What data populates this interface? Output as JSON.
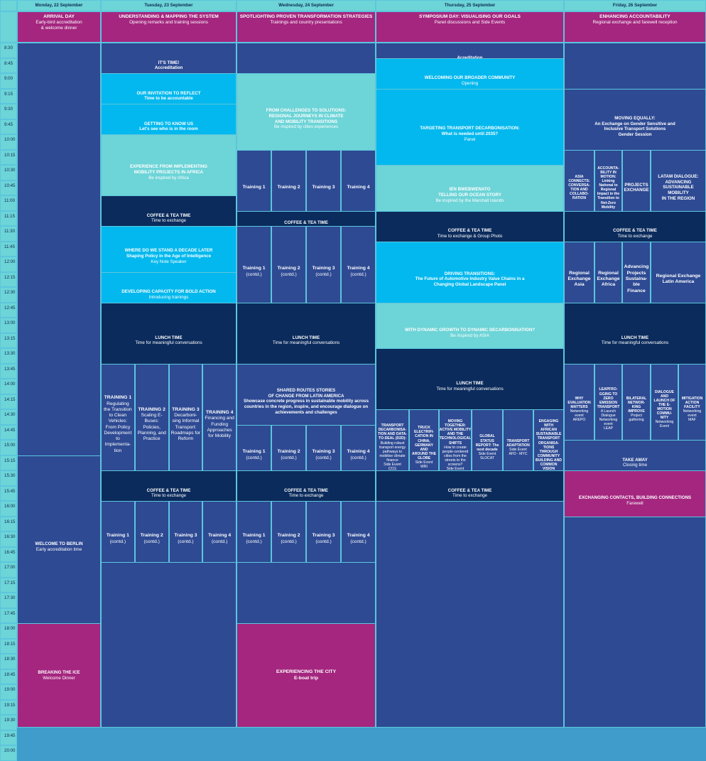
{
  "colors": {
    "border": "#5cc6dd",
    "header_bg": "#6dd4d7",
    "time_bg": "#6dd4d7",
    "magenta": "#a4267f",
    "royal": "#2e4a93",
    "navy": "#0b2b5c",
    "sky": "#02b8ee",
    "teal": "#6dd4d7",
    "dark_text": "#0d2a52",
    "light_text": "#ffffff"
  },
  "days": [
    {
      "title": "Monday, 22 September",
      "sub_title": "ARRIVAL DAY",
      "sub_text": "Early-bird accreditation\n& welcome dinner"
    },
    {
      "title": "Tuesday, 23 September",
      "sub_title": "UNDERSTANDING & MAPPING THE SYSTEM",
      "sub_text": "Opening remarks and training sessions"
    },
    {
      "title": "Wednesday, 24 September",
      "sub_title": "SPOTLIGHTING PROVEN TRANSFORMATION STRATEGIES",
      "sub_text": "Trainings and country presentations"
    },
    {
      "title": "Thursday, 25 September",
      "sub_title": "SYMPOSIUM DAY: VISUALISING OUR GOALS",
      "sub_text": "Panel discussions and Side Events"
    },
    {
      "title": "Friday, 26 September",
      "sub_title": "ENHANCING ACCOUNTABILITY",
      "sub_text": "Regional exchange and farewell reception"
    }
  ],
  "times": [
    "8:30",
    "8:45",
    "9:00",
    "9:15",
    "9:30",
    "9:45",
    "10:00",
    "10:15",
    "10:30",
    "10:45",
    "11:00",
    "11:15",
    "11:30",
    "11:45",
    "12:00",
    "12:15",
    "12:30",
    "12:45",
    "13:00",
    "13:15",
    "13:30",
    "13:45",
    "14:00",
    "14:15",
    "14:30",
    "14:45",
    "15:00",
    "15:15",
    "15:30",
    "15:45",
    "16:00",
    "16:15",
    "16:30",
    "16:45",
    "17:00",
    "17:15",
    "17:30",
    "17:45",
    "18:00",
    "18:15",
    "18:30",
    "18:45",
    "19:00",
    "19:15",
    "19:30",
    "19:45",
    "20:00"
  ],
  "events": [
    {
      "day": 0,
      "col": 0,
      "span": 1,
      "start": 0,
      "end": 27,
      "color": "royal",
      "title": "",
      "text": ""
    },
    {
      "day": 0,
      "col": 0,
      "span": 1,
      "start": 27,
      "end": 38,
      "color": "royal",
      "title": "WELCOME TO BERLIN",
      "text": "Early accreditation time"
    },
    {
      "day": 0,
      "col": 0,
      "span": 1,
      "start": 38,
      "end": 46,
      "color": "magenta",
      "title": "BREAKING THE ICE",
      "text": "Welcome Dinner"
    },
    {
      "day": 1,
      "col": 0,
      "span": 4,
      "start": 0,
      "end": 2,
      "color": "royal",
      "title": "IT'S TIME!\nAccreditation",
      "text": ""
    },
    {
      "day": 1,
      "col": 0,
      "span": 4,
      "start": 2,
      "end": 4,
      "color": "sky",
      "title": "OUR INVITATION TO REFLECT\nTime to be accountable",
      "text": ""
    },
    {
      "day": 1,
      "col": 0,
      "span": 4,
      "start": 4,
      "end": 6,
      "color": "sky",
      "title": "GETTING TO KNOW US\nLet's see who is in the room",
      "text": ""
    },
    {
      "day": 1,
      "col": 0,
      "span": 4,
      "start": 6,
      "end": 10,
      "color": "teal",
      "title": "EXPERIENCE FROM IMPLEMENTING\nMOBILITY PROJECTS IN AFRICA",
      "text": "Be inspired by Africa"
    },
    {
      "day": 1,
      "col": 0,
      "span": 4,
      "start": 10,
      "end": 12,
      "color": "navy",
      "title": "COFFEE & TEA TIME",
      "text": "Time to exchange"
    },
    {
      "day": 1,
      "col": 0,
      "span": 4,
      "start": 12,
      "end": 15,
      "color": "sky",
      "title": "WHERE DO WE STAND A DECADE LATER\nShaping Policy in the Age of Intelligence",
      "text": "Key Note Speaker"
    },
    {
      "day": 1,
      "col": 0,
      "span": 4,
      "start": 15,
      "end": 17,
      "color": "sky",
      "title": "DEVELOPING CAPACITY FOR BOLD ACTION",
      "text": "Introducing trainings"
    },
    {
      "day": 1,
      "col": 0,
      "span": 4,
      "start": 17,
      "end": 21,
      "color": "navy",
      "title": "LUNCH TIME",
      "text": "Time for meaningful conversations"
    },
    {
      "day": 1,
      "col": 0,
      "span": 1,
      "start": 21,
      "end": 28,
      "color": "royal",
      "size": "large",
      "title": "TRAINING 1",
      "text": "Regulating\nthe Transition\nto Clean\nVehicles:\nFrom Policy\nDevelopment\nto\nImplementa-\ntion"
    },
    {
      "day": 1,
      "col": 1,
      "span": 1,
      "start": 21,
      "end": 28,
      "color": "royal",
      "size": "large",
      "title": "TRAINING 2",
      "text": "Scaling E-\nBuses:\nPolicies,\nPlanning, and\nPractice"
    },
    {
      "day": 1,
      "col": 2,
      "span": 1,
      "start": 21,
      "end": 28,
      "color": "royal",
      "size": "large",
      "title": "TRAINING 3",
      "text": "Decarboni-\nsing Informal\nTransport:\nRoadmaps for\nReform"
    },
    {
      "day": 1,
      "col": 3,
      "span": 1,
      "start": 21,
      "end": 28,
      "color": "royal",
      "size": "large",
      "title": "TRAINING 4",
      "text": "Financing and\nFunding\nApproaches\nfor Mobility"
    },
    {
      "day": 1,
      "col": 0,
      "span": 4,
      "start": 28,
      "end": 30,
      "color": "navy",
      "title": "COFFEE & TEA TIME",
      "text": "Time to exchange"
    },
    {
      "day": 1,
      "col": 0,
      "span": 1,
      "start": 30,
      "end": 34,
      "color": "royal",
      "size": "large",
      "title": "Training 1",
      "text": "(contd.)"
    },
    {
      "day": 1,
      "col": 1,
      "span": 1,
      "start": 30,
      "end": 34,
      "color": "royal",
      "size": "large",
      "title": "Training 2",
      "text": "(contd.)"
    },
    {
      "day": 1,
      "col": 2,
      "span": 1,
      "start": 30,
      "end": 34,
      "color": "royal",
      "size": "large",
      "title": "Training 3",
      "text": "(contd.)"
    },
    {
      "day": 1,
      "col": 3,
      "span": 1,
      "start": 30,
      "end": 34,
      "color": "royal",
      "size": "large",
      "title": "Training 4",
      "text": "(contd.)"
    },
    {
      "day": 1,
      "col": 0,
      "span": 4,
      "start": 34,
      "end": 46,
      "color": "royal",
      "title": "",
      "text": ""
    },
    {
      "day": 2,
      "col": 0,
      "span": 4,
      "start": 0,
      "end": 2,
      "color": "royal",
      "title": "",
      "text": ""
    },
    {
      "day": 2,
      "col": 0,
      "span": 4,
      "start": 2,
      "end": 7,
      "color": "teal",
      "title": "FROM CHALLENGES TO SOLUTIONS:\nREGIONAL JOURNEYS IN CLIMATE\nAND MOBILITY TRANSITIONS",
      "text": "Be inspired by cities experiences"
    },
    {
      "day": 2,
      "col": 0,
      "span": 1,
      "start": 7,
      "end": 11,
      "color": "royal",
      "size": "large",
      "title": "Training 1",
      "text": ""
    },
    {
      "day": 2,
      "col": 1,
      "span": 1,
      "start": 7,
      "end": 11,
      "color": "royal",
      "size": "large",
      "title": "Training 2",
      "text": ""
    },
    {
      "day": 2,
      "col": 2,
      "span": 1,
      "start": 7,
      "end": 11,
      "color": "royal",
      "size": "large",
      "title": "Training 3",
      "text": ""
    },
    {
      "day": 2,
      "col": 3,
      "span": 1,
      "start": 7,
      "end": 11,
      "color": "royal",
      "size": "large",
      "title": "Training 4",
      "text": ""
    },
    {
      "day": 2,
      "col": 0,
      "span": 4,
      "start": 11,
      "end": 12,
      "color": "navy",
      "title": "COFFEE & TEA TIME",
      "text": "Time to exchange"
    },
    {
      "day": 2,
      "col": 0,
      "span": 1,
      "start": 12,
      "end": 17,
      "color": "royal",
      "size": "large",
      "title": "Training 1",
      "text": "(contd.)"
    },
    {
      "day": 2,
      "col": 1,
      "span": 1,
      "start": 12,
      "end": 17,
      "color": "royal",
      "size": "large",
      "title": "Training 2",
      "text": "(contd.)"
    },
    {
      "day": 2,
      "col": 2,
      "span": 1,
      "start": 12,
      "end": 17,
      "color": "royal",
      "size": "large",
      "title": "Training 3",
      "text": "(contd.)"
    },
    {
      "day": 2,
      "col": 3,
      "span": 1,
      "start": 12,
      "end": 17,
      "color": "royal",
      "size": "large",
      "title": "Training 4",
      "text": "(contd.)"
    },
    {
      "day": 2,
      "col": 0,
      "span": 4,
      "start": 17,
      "end": 21,
      "color": "navy",
      "title": "LUNCH TIME",
      "text": "Time for meaningful conversations"
    },
    {
      "day": 2,
      "col": 0,
      "span": 4,
      "start": 21,
      "end": 25,
      "color": "royal",
      "title": "SHARED ROUTES STORIES\nOF CHANGE FROM LATIN AMERICA\nShowcase concrete progress in sustainable mobility across\ncountries in the region, inspire, and encourage dialogue on\nachievements and challenges",
      "text": ""
    },
    {
      "day": 2,
      "col": 0,
      "span": 1,
      "start": 25,
      "end": 28,
      "color": "royal",
      "size": "large",
      "title": "Training 1",
      "text": "(contd.)"
    },
    {
      "day": 2,
      "col": 1,
      "span": 1,
      "start": 25,
      "end": 28,
      "color": "royal",
      "size": "large",
      "title": "Training 2",
      "text": "(contd.)"
    },
    {
      "day": 2,
      "col": 2,
      "span": 1,
      "start": 25,
      "end": 28,
      "color": "royal",
      "size": "large",
      "title": "Training 3",
      "text": "(contd.)"
    },
    {
      "day": 2,
      "col": 3,
      "span": 1,
      "start": 25,
      "end": 28,
      "color": "royal",
      "size": "large",
      "title": "Training 4",
      "text": "(contd.)"
    },
    {
      "day": 2,
      "col": 0,
      "span": 4,
      "start": 28,
      "end": 30,
      "color": "navy",
      "title": "COFFEE & TEA TIME",
      "text": "Time to exchange"
    },
    {
      "day": 2,
      "col": 0,
      "span": 1,
      "start": 30,
      "end": 34,
      "color": "royal",
      "size": "large",
      "title": "Training 1",
      "text": "(contd.)"
    },
    {
      "day": 2,
      "col": 1,
      "span": 1,
      "start": 30,
      "end": 34,
      "color": "royal",
      "size": "large",
      "title": "Training 2",
      "text": "(contd.)"
    },
    {
      "day": 2,
      "col": 2,
      "span": 1,
      "start": 30,
      "end": 34,
      "color": "royal",
      "size": "large",
      "title": "Training 3",
      "text": "(contd.)"
    },
    {
      "day": 2,
      "col": 3,
      "span": 1,
      "start": 30,
      "end": 34,
      "color": "royal",
      "size": "large",
      "title": "Training 4",
      "text": "(contd.)"
    },
    {
      "day": 2,
      "col": 0,
      "span": 4,
      "start": 34,
      "end": 38,
      "color": "royal",
      "title": "",
      "text": ""
    },
    {
      "day": 2,
      "col": 0,
      "span": 4,
      "start": 38,
      "end": 46,
      "color": "magenta",
      "size": "large",
      "title": "EXPERIENCING THE CITY\nE-boat trip",
      "text": ""
    },
    {
      "day": 3,
      "col": 0,
      "span": 7,
      "start": 0,
      "end": 1,
      "color": "royal",
      "title": "Acreditation",
      "text": ""
    },
    {
      "day": 3,
      "col": 0,
      "span": 7,
      "start": 1,
      "end": 3,
      "color": "sky",
      "title": "WELCOMING OUR BROADER COMMUNITY",
      "text": "Opening"
    },
    {
      "day": 3,
      "col": 0,
      "span": 7,
      "start": 3,
      "end": 8,
      "color": "sky",
      "title": "TARGETING TRANSPORT DECARBONISATION:\nWhat is needed until 2035?",
      "text": "Panel"
    },
    {
      "day": 3,
      "col": 0,
      "span": 7,
      "start": 8,
      "end": 11,
      "color": "teal",
      "title": "IEN BWEBWENATO\nTELLING OUR OCEAN STORY",
      "text": "Be inspired by the Marshall Islands"
    },
    {
      "day": 3,
      "col": 0,
      "span": 7,
      "start": 11,
      "end": 13,
      "color": "navy",
      "title": "COFFEE & TEA TIME",
      "text": "Time to exchange & Group Photo"
    },
    {
      "day": 3,
      "col": 0,
      "span": 7,
      "start": 13,
      "end": 17,
      "color": "sky",
      "title": "DRIVING TRANSITIONS:\nThe Future of Automotive Industry Value Chains in a\nChanging Global Landscape Panel",
      "text": ""
    },
    {
      "day": 3,
      "col": 0,
      "span": 7,
      "start": 17,
      "end": 20,
      "color": "teal",
      "title": "WITH DYNAMIC GROWTH TO DYNAMIC DECARBONISATION?",
      "text": "Be inspired by ASIA"
    },
    {
      "day": 3,
      "col": 0,
      "span": 7,
      "start": 20,
      "end": 24,
      "color": "navy",
      "title": "LUNCH TIME",
      "text": "Time for meaningful conversations"
    },
    {
      "day": 3,
      "col": 0,
      "span": 1,
      "start": 24,
      "end": 28,
      "color": "royal",
      "size": "tiny",
      "title": "TRANSPORT\nDECARBONISA-\nTION AND DATA-\nTO-DEAL (D2D):",
      "text": "Building robust\ntransport energy\npathways to\nmobilise climate\nfinance\nSide Event\nCCG"
    },
    {
      "day": 3,
      "col": 1,
      "span": 1,
      "start": 24,
      "end": 28,
      "color": "royal",
      "size": "tiny",
      "title": "TRUCK\nELECTRIFI-\nCATION IN\nCHINA,\nGERMANY AND\nAROUND THE\nGLOBE",
      "text": "Side Event\nWRI"
    },
    {
      "day": 3,
      "col": 2,
      "span": 1,
      "start": 24,
      "end": 28,
      "color": "royal",
      "size": "tiny",
      "title": "MOVING\nTOGETHER:\nACTIVE MOBILITY\nAND THE\nTECHNOLOGICAL\nSHIFTS",
      "text": "How to create\npeople-centered\ncities from the\nstreets to the\nscreens?\nSide Event\nICLEI"
    },
    {
      "day": 3,
      "col": 3,
      "span": 1,
      "start": 24,
      "end": 28,
      "color": "royal",
      "size": "tiny",
      "title": "GLOBAL\nSTATUS\nREPORT: The\nnext decade",
      "text": "Side Event\nSLOCAT"
    },
    {
      "day": 3,
      "col": 4,
      "span": 1,
      "start": 24,
      "end": 28,
      "color": "royal",
      "size": "tiny",
      "title": "TRANSPORT\nADAPTATION",
      "text": "Side Event\nAFD - MYC"
    },
    {
      "day": 3,
      "col": 5,
      "span": 1,
      "start": 24,
      "end": 28,
      "color": "royal",
      "size": "tiny",
      "title": "ENGAGING\nWITH AFRICAN\nSUSTAINABLE\nTRANSPORT\nORGANISA-\nTIONS\nTHROUGH\nCOMMUNITY\nBUILDING AND\nCOMMON\nVISION",
      "text": "AGORA"
    },
    {
      "day": 3,
      "col": 0,
      "span": 7,
      "start": 28,
      "end": 30,
      "color": "navy",
      "title": "COFFEE & TEA TIME",
      "text": "Time to exchange"
    },
    {
      "day": 3,
      "col": 0,
      "span": 7,
      "start": 30,
      "end": 46,
      "color": "royal",
      "title": "",
      "text": ""
    },
    {
      "day": 4,
      "col": 0,
      "span": 7,
      "start": 0,
      "end": 3,
      "color": "royal",
      "title": "",
      "text": ""
    },
    {
      "day": 4,
      "col": 0,
      "span": 7,
      "start": 3,
      "end": 7,
      "color": "royal",
      "title": "MOVING EQUALLY:\nAn Exchange on Gender Sensitive and\nInclusive Transport Solutions\nGender Session",
      "text": ""
    },
    {
      "day": 4,
      "col": 0,
      "span": 1,
      "start": 7,
      "end": 11,
      "color": "royal",
      "size": "tiny",
      "title": "ASIA\nCONNECTS:\nCONVERSA-\nTION AND\nCOLLABO-\nRATION",
      "text": ""
    },
    {
      "day": 4,
      "col": 1,
      "span": 1,
      "start": 7,
      "end": 11,
      "color": "royal",
      "size": "tiny",
      "title": "ACCOUNTA-\nBILITY IN\nMOTION:\nLinking\nNational to\nRegional\nImpact in the\nTransition to\nNet-Zero\nMobility",
      "text": ""
    },
    {
      "day": 4,
      "col": 2,
      "span": 1,
      "start": 7,
      "end": 11,
      "color": "royal",
      "title": "PROJECTS\nEXCHANGE",
      "text": ""
    },
    {
      "day": 4,
      "col": 3,
      "span": 4,
      "start": 7,
      "end": 11,
      "color": "royal",
      "title": "LATAM DIALOGUE:\nADVANCING\nSUSTAINABLE MOBILITY\nIN THE REGION",
      "text": ""
    },
    {
      "day": 4,
      "col": 0,
      "span": 7,
      "start": 11,
      "end": 13,
      "color": "navy",
      "title": "COFFEE & TEA TIME",
      "text": "Time to exchange"
    },
    {
      "day": 4,
      "col": 0,
      "span": 1,
      "start": 13,
      "end": 17,
      "color": "royal",
      "size": "large",
      "title": "Regional\nExchange\nAsia",
      "text": ""
    },
    {
      "day": 4,
      "col": 1,
      "span": 1,
      "start": 13,
      "end": 17,
      "color": "royal",
      "size": "large",
      "title": "Regional\nExchange\nAfrica",
      "text": ""
    },
    {
      "day": 4,
      "col": 2,
      "span": 1,
      "start": 13,
      "end": 17,
      "color": "royal",
      "size": "large",
      "title": "Advancing\nProjects\nSustaina-\nble\nFinance",
      "text": ""
    },
    {
      "day": 4,
      "col": 3,
      "span": 4,
      "start": 13,
      "end": 17,
      "color": "royal",
      "size": "large",
      "title": "Regional Exchange\nLatin America",
      "text": ""
    },
    {
      "day": 4,
      "col": 0,
      "span": 7,
      "start": 17,
      "end": 21,
      "color": "navy",
      "title": "LUNCH TIME",
      "text": "Time for meaningful conversations"
    },
    {
      "day": 4,
      "col": 0,
      "span": 1,
      "start": 21,
      "end": 26,
      "color": "royal",
      "size": "tiny",
      "title": "WHY\nEVALUATION\nMATTERS",
      "text": "Networking\nevent\nAREPO"
    },
    {
      "day": 4,
      "col": 1,
      "span": 1,
      "start": 21,
      "end": 26,
      "color": "royal",
      "size": "tiny",
      "title": "LEAPFRO-\nGGING TO\nZERO\nEMISSION\nTRANSPORT",
      "text": "A Launch\nDialogue\nNetworking\nevent\nLEAP"
    },
    {
      "day": 4,
      "col": 2,
      "span": 1,
      "start": 21,
      "end": 26,
      "color": "royal",
      "size": "tiny",
      "title": "BILATERAL\nNETWOR-\nKING\nIMPROVE",
      "text": "Project\ngathering"
    },
    {
      "day": 4,
      "col": 3,
      "span": 1,
      "start": 21,
      "end": 26,
      "color": "royal",
      "size": "tiny",
      "title": "DIALOGUE\nAND\nLAUNCH OF\nTHE E-\nMOTION\nCOMMU-\nNITY",
      "text": "Networking\nEvent"
    },
    {
      "day": 4,
      "col": 4,
      "span": 3,
      "start": 21,
      "end": 26,
      "color": "royal",
      "size": "tiny",
      "title": "MITIGATION\nACTION\nFACILITY",
      "text": "Networking\nevent\nMAF"
    },
    {
      "day": 4,
      "col": 0,
      "span": 7,
      "start": 26,
      "end": 28,
      "color": "royal",
      "title": "TAKE AWAY",
      "text": "Closing time"
    },
    {
      "day": 4,
      "col": 0,
      "span": 7,
      "start": 28,
      "end": 31,
      "color": "magenta",
      "title": "EXCHANGING CONTACTS, BUILDING CONNECTIONS",
      "text": "Farewell"
    },
    {
      "day": 4,
      "col": 0,
      "span": 7,
      "start": 31,
      "end": 46,
      "color": "royal",
      "title": "",
      "text": ""
    }
  ]
}
